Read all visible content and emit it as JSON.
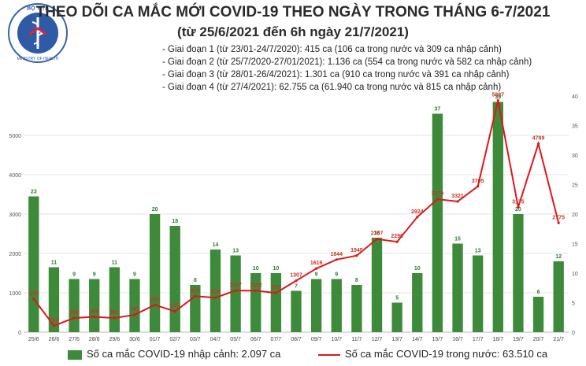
{
  "header": {
    "title": "THEO DÕI CA MẮC MỚI COVID-19 THEO NGÀY TRONG THÁNG 6-7/2021",
    "subtitle": "(từ 25/6/2021 đến 6h ngày 21/7/2021)",
    "phases": [
      "- Giai đoạn 1 (từ 23/01-24/7/2020): 415 ca (106 ca trong nước và 309 ca nhập cảnh)",
      "- Giai đoạn 2 (từ 25/7/2020-27/01/2021): 1.136 ca (554 ca trong nước và 582 ca nhập cảnh)",
      "- Giai đoạn 3 (từ 28/01-26/4/2021): 1.301 ca (910 ca trong nước và 391 ca nhập cảnh)",
      "- Giai đoạn 4 (từ 27/4/2021): 62.755 ca (61.940 ca trong nước và 815 ca nhập cảnh)"
    ],
    "logo": {
      "top_text": "BỘ Y TẾ",
      "bottom_text": "MINISTRY OF HEALTH",
      "icon": "ministry-of-health-emblem"
    }
  },
  "legend": {
    "bar_label": "Số ca mắc COVID-19 nhập cảnh: 2.097 ca",
    "line_label": "Số ca mắc COVID-19 trong nước: 63.510 ca"
  },
  "colors": {
    "bar": "#3d8a3a",
    "line": "#e0161b",
    "bar_label": "#2e7d32",
    "line_label": "#c0392b",
    "grid": "#e6e6e6"
  },
  "chart_data": {
    "type": "bar+line",
    "categories": [
      "25/6",
      "26/6",
      "27/6",
      "28/6",
      "29/6",
      "30/6",
      "01/7",
      "02/7",
      "03/7",
      "04/7",
      "05/7",
      "06/7",
      "07/7",
      "08/7",
      "09/7",
      "10/7",
      "11/7",
      "12/7",
      "13/7",
      "14/7",
      "15/7",
      "16/7",
      "17/7",
      "18/7",
      "19/7",
      "20/7",
      "21/7"
    ],
    "series": [
      {
        "type": "bar",
        "axis": "right",
        "values": [
          23,
          11,
          9,
          9,
          11,
          9,
          20,
          18,
          8,
          14,
          13,
          10,
          10,
          7,
          9,
          9,
          8,
          16,
          5,
          10,
          37,
          15,
          13,
          39,
          20,
          6,
          12
        ]
      },
      {
        "type": "line",
        "axis": "left",
        "values": [
          845,
          164,
          359,
          389,
          361,
          441,
          693,
          527,
          914,
          876,
          1057,
          1052,
          997,
          1307,
          1616,
          1844,
          1945,
          2367,
          2296,
          2924,
          3379,
          3321,
          3705,
          5887,
          3175,
          4789,
          2775
        ],
        "labels": [
          "845",
          "164",
          "359",
          "389",
          "361",
          "441",
          "693",
          "527",
          "914",
          "876",
          "1057",
          "1052",
          "997",
          "1307",
          "1616",
          "1844",
          "1945",
          "2367",
          "2296",
          "2924",
          "3379",
          "3321",
          "3705",
          "5887",
          "3175",
          "4789",
          "2775"
        ]
      }
    ],
    "y_left": {
      "ticks": [
        0,
        1000,
        2000,
        3000,
        4000,
        5000
      ],
      "ylim": [
        0,
        6000
      ]
    },
    "y_right": {
      "ticks": [
        0,
        5,
        10,
        15,
        20,
        25,
        30,
        35,
        40
      ],
      "ylim": [
        0,
        40
      ]
    },
    "grid": true,
    "legend_position": "bottom"
  }
}
